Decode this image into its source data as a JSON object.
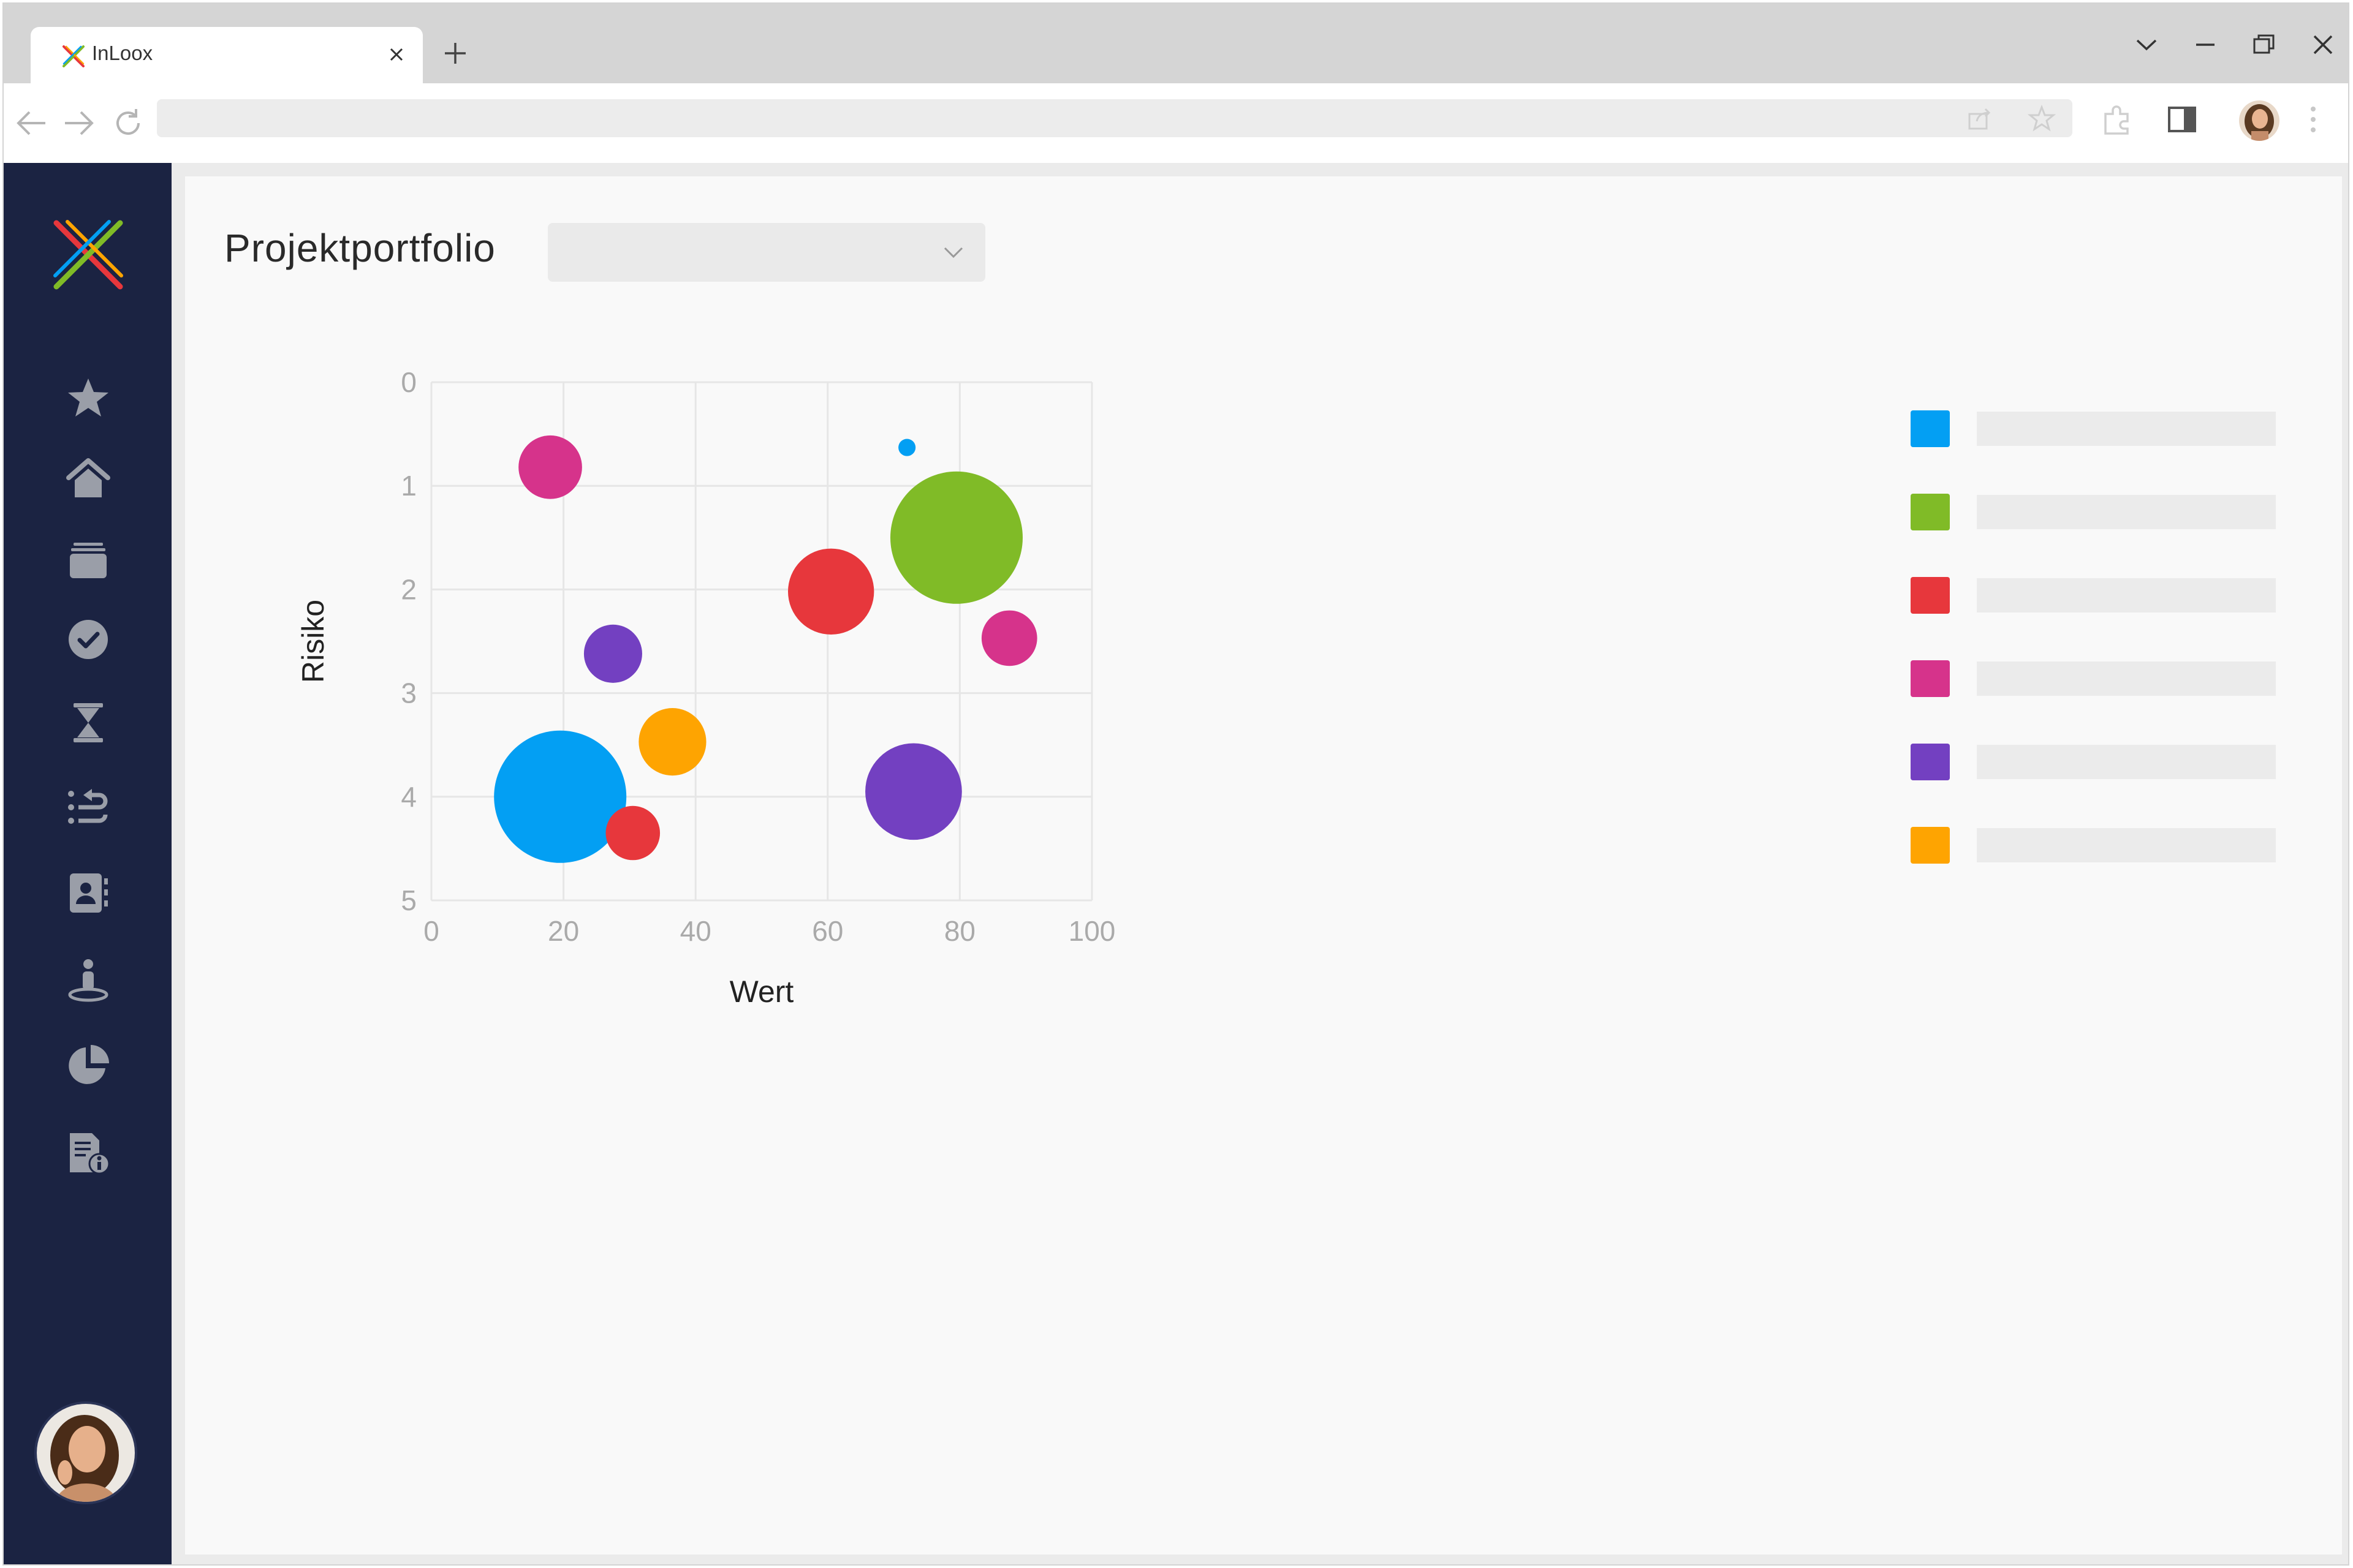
{
  "browser": {
    "tab_title": "InLoox",
    "address_url": ""
  },
  "sidebar": {
    "items": [
      {
        "icon": "star-icon"
      },
      {
        "icon": "home-icon"
      },
      {
        "icon": "projects-icon"
      },
      {
        "icon": "tasks-check-icon"
      },
      {
        "icon": "hourglass-icon"
      },
      {
        "icon": "workflow-icon"
      },
      {
        "icon": "contacts-icon"
      },
      {
        "icon": "person-location-icon"
      },
      {
        "icon": "pie-chart-icon"
      },
      {
        "icon": "document-info-icon"
      }
    ],
    "expand_icon": "double-chevron-right-icon"
  },
  "page": {
    "title": "Projektportfolio",
    "filter_dropdown": {
      "selected": ""
    }
  },
  "chart_data": {
    "type": "bubble",
    "xlabel": "Wert",
    "ylabel": "Risiko",
    "xlim": [
      0,
      100
    ],
    "ylim": [
      0,
      5
    ],
    "y_inverted": true,
    "x_ticks": [
      0,
      20,
      40,
      60,
      80,
      100
    ],
    "y_ticks": [
      0,
      1,
      2,
      3,
      4,
      5
    ],
    "grid": true,
    "legend_position": "right",
    "series": [
      {
        "color": "#039ff3",
        "points": [
          {
            "x": 72,
            "y": 0.63,
            "size": 0.13
          },
          {
            "x": 19.5,
            "y": 4.0,
            "size": 1.0
          }
        ]
      },
      {
        "color": "#80bb27",
        "points": [
          {
            "x": 79.5,
            "y": 1.5,
            "size": 1.0
          }
        ]
      },
      {
        "color": "#e7373c",
        "points": [
          {
            "x": 60.5,
            "y": 2.02,
            "size": 0.65
          },
          {
            "x": 30.5,
            "y": 4.35,
            "size": 0.41
          }
        ]
      },
      {
        "color": "#d6338b",
        "points": [
          {
            "x": 18,
            "y": 0.82,
            "size": 0.48
          },
          {
            "x": 87.5,
            "y": 2.47,
            "size": 0.42
          }
        ]
      },
      {
        "color": "#7340c1",
        "points": [
          {
            "x": 27.5,
            "y": 2.62,
            "size": 0.44
          },
          {
            "x": 73,
            "y": 3.95,
            "size": 0.73
          }
        ]
      },
      {
        "color": "#fea401",
        "points": [
          {
            "x": 36.5,
            "y": 3.47,
            "size": 0.51
          }
        ]
      }
    ]
  }
}
